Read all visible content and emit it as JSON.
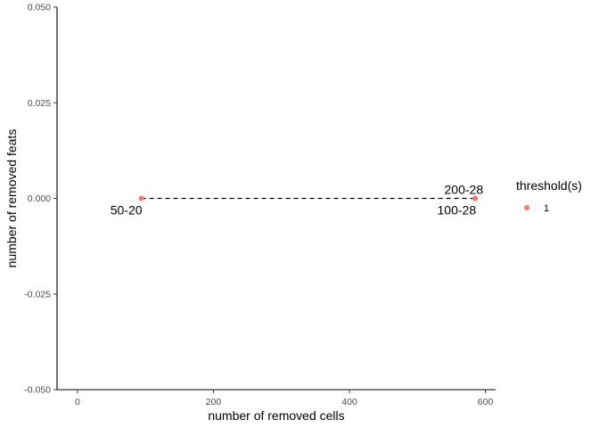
{
  "chart_data": {
    "type": "scatter",
    "xlabel": "number of removed cells",
    "ylabel": "number of removed feats",
    "xlim": [
      -30,
      615
    ],
    "ylim": [
      -0.05,
      0.05
    ],
    "x_ticks": [
      0,
      200,
      400,
      600
    ],
    "x_tick_labels": [
      "0",
      "200",
      "400",
      "600"
    ],
    "y_ticks": [
      -0.05,
      -0.025,
      0.0,
      0.025,
      0.05
    ],
    "y_tick_labels": [
      "-0.050",
      "-0.025",
      "0.000",
      "0.025",
      "0.050"
    ],
    "grid": false,
    "legend": {
      "title": "threshold(s)",
      "position": "right",
      "entries": [
        {
          "label": "1",
          "color": "#F8766D"
        }
      ]
    },
    "series": [
      {
        "name": "1",
        "color": "#F8766D",
        "line_style": "dashed",
        "points": [
          {
            "x": 94,
            "y": 0.0
          },
          {
            "x": 585,
            "y": 0.0
          },
          {
            "x": 585,
            "y": 0.0
          }
        ]
      }
    ],
    "annotations": [
      {
        "text": "50-20",
        "x": 94,
        "y": 0.0,
        "placement": "below-left"
      },
      {
        "text": "100-28",
        "x": 585,
        "y": 0.0,
        "placement": "below-left"
      },
      {
        "text": "200-28",
        "x": 585,
        "y": 0.0,
        "placement": "above-left"
      }
    ]
  }
}
